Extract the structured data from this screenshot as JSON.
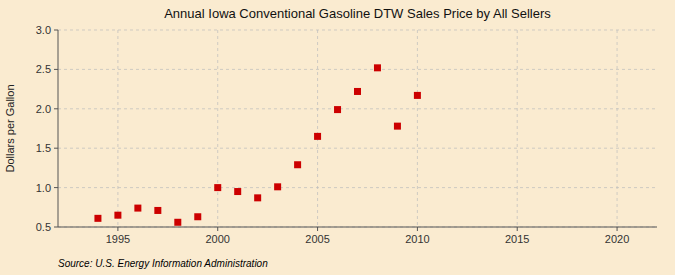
{
  "chart_data": {
    "type": "scatter",
    "title": "Annual Iowa Conventional Gasoline DTW Sales Price by All Sellers",
    "ylabel": "Dollars per Gallon",
    "annotation": "Source: U.S. Energy Information Administration",
    "x": [
      1994,
      1995,
      1996,
      1997,
      1998,
      1999,
      2000,
      2001,
      2002,
      2003,
      2004,
      2005,
      2006,
      2007,
      2008,
      2009,
      2010
    ],
    "values": [
      0.61,
      0.65,
      0.74,
      0.71,
      0.56,
      0.63,
      1.0,
      0.95,
      0.87,
      1.01,
      1.29,
      1.65,
      1.99,
      2.22,
      2.52,
      1.78,
      2.17
    ],
    "color": "#cc0000",
    "marker": "square",
    "xlim": [
      1992,
      2022
    ],
    "ylim": [
      0.5,
      3.0
    ],
    "xticks": [
      1995,
      2000,
      2005,
      2010,
      2015,
      2020
    ],
    "yticks": [
      0.5,
      {
        "value": 1,
        "label": "1.0"
      },
      1.5,
      {
        "value": 2,
        "label": "2.0"
      },
      2.5,
      {
        "value": 3,
        "label": "3.0"
      }
    ],
    "grid": true
  }
}
